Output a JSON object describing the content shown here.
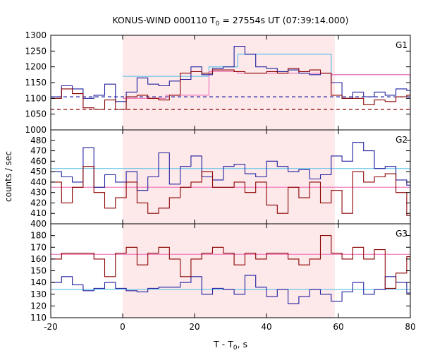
{
  "chart_data": {
    "type": "line",
    "title": "KONUS-WIND 000110 T",
    "title_sub": "0",
    "title_rest": " = 27554s UT (07:39:14.000)",
    "xlabel": "T - T",
    "xlabel_sub": "0",
    "xlabel_rest": ", s",
    "ylabel": "counts / sec",
    "xlim": [
      -20,
      80
    ],
    "x_ticks": [
      -20,
      0,
      20,
      40,
      60,
      80
    ],
    "shaded_interval": [
      0,
      59
    ],
    "colors": {
      "shade": "#fde8ea",
      "red_series": "#8b0000",
      "blue_series": "#2020a0",
      "light_blue": "#6ec6e8",
      "pink": "#f080c0"
    },
    "panels": [
      {
        "name": "G1",
        "ylim": [
          1000,
          1300
        ],
        "y_ticks": [
          1000,
          1050,
          1100,
          1150,
          1200,
          1250,
          1300
        ],
        "bin_edges": [
          -20,
          -17,
          -14,
          -11,
          -8,
          -5,
          -2,
          1,
          4,
          7,
          10,
          13,
          16,
          19,
          22,
          25,
          28,
          31,
          34,
          37,
          40,
          43,
          46,
          49,
          52,
          55,
          58,
          61,
          64,
          67,
          70,
          73,
          76,
          79,
          80
        ],
        "blue_steps": [
          1105,
          1140,
          1130,
          1100,
          1110,
          1145,
          1090,
          1120,
          1165,
          1145,
          1140,
          1155,
          1160,
          1200,
          1175,
          1195,
          1200,
          1265,
          1240,
          1200,
          1195,
          1185,
          1190,
          1180,
          1175,
          1180,
          1150,
          1100,
          1120,
          1105,
          1120,
          1110,
          1130,
          1125
        ],
        "red_steps": [
          1100,
          1130,
          1115,
          1070,
          1065,
          1095,
          1065,
          1105,
          1110,
          1100,
          1095,
          1110,
          1180,
          1185,
          1180,
          1190,
          1190,
          1185,
          1180,
          1180,
          1185,
          1180,
          1195,
          1185,
          1190,
          1180,
          1110,
          1100,
          1100,
          1080,
          1095,
          1090,
          1105,
          1110
        ],
        "bg_blue": 1105,
        "bg_red": 1065,
        "burst_light_blue": {
          "edges": [
            0,
            24,
            32,
            58,
            80
          ],
          "values": [
            1170,
            1200,
            1240,
            1175,
            1100
          ]
        },
        "burst_pink": {
          "edges": [
            0,
            12,
            24,
            32,
            58,
            80
          ],
          "values": [
            1100,
            1110,
            1185,
            1180,
            1175,
            1100
          ]
        }
      },
      {
        "name": "G2",
        "ylim": [
          400,
          490
        ],
        "y_ticks": [
          400,
          410,
          420,
          430,
          440,
          450,
          460,
          470,
          480
        ],
        "bin_edges": [
          -20,
          -17,
          -14,
          -11,
          -8,
          -5,
          -2,
          1,
          4,
          7,
          10,
          13,
          16,
          19,
          22,
          25,
          28,
          31,
          34,
          37,
          40,
          43,
          46,
          49,
          52,
          55,
          58,
          61,
          64,
          67,
          70,
          73,
          76,
          79,
          80
        ],
        "blue_steps": [
          450,
          445,
          440,
          473,
          435,
          447,
          440,
          450,
          432,
          445,
          468,
          438,
          455,
          465,
          445,
          442,
          455,
          457,
          448,
          445,
          460,
          455,
          450,
          452,
          443,
          447,
          465,
          460,
          478,
          470,
          453,
          455,
          442,
          437
        ],
        "red_steps": [
          440,
          420,
          435,
          455,
          430,
          415,
          425,
          440,
          420,
          410,
          415,
          425,
          435,
          440,
          450,
          435,
          435,
          440,
          430,
          440,
          418,
          410,
          435,
          425,
          440,
          420,
          432,
          410,
          450,
          440,
          445,
          448,
          430,
          408
        ],
        "line_light_blue": 453,
        "line_pink": 435
      },
      {
        "name": "G3",
        "ylim": [
          110,
          190
        ],
        "y_ticks": [
          110,
          120,
          130,
          140,
          150,
          160,
          170,
          180
        ],
        "bin_edges": [
          -20,
          -17,
          -14,
          -11,
          -8,
          -5,
          -2,
          1,
          4,
          7,
          10,
          13,
          16,
          19,
          22,
          25,
          28,
          31,
          34,
          37,
          40,
          43,
          46,
          49,
          52,
          55,
          58,
          61,
          64,
          67,
          70,
          73,
          76,
          79,
          80
        ],
        "blue_steps": [
          140,
          145,
          138,
          133,
          135,
          140,
          135,
          133,
          132,
          135,
          136,
          136,
          140,
          145,
          130,
          135,
          134,
          130,
          146,
          136,
          128,
          134,
          122,
          128,
          134,
          130,
          124,
          132,
          140,
          130,
          134,
          145,
          140,
          131
        ],
        "red_steps": [
          160,
          165,
          165,
          165,
          160,
          145,
          165,
          170,
          155,
          165,
          170,
          160,
          145,
          160,
          165,
          170,
          165,
          155,
          165,
          160,
          165,
          165,
          160,
          155,
          160,
          180,
          165,
          160,
          170,
          160,
          168,
          135,
          148,
          162
        ],
        "line_light_blue": 134,
        "line_pink": 164
      }
    ]
  }
}
